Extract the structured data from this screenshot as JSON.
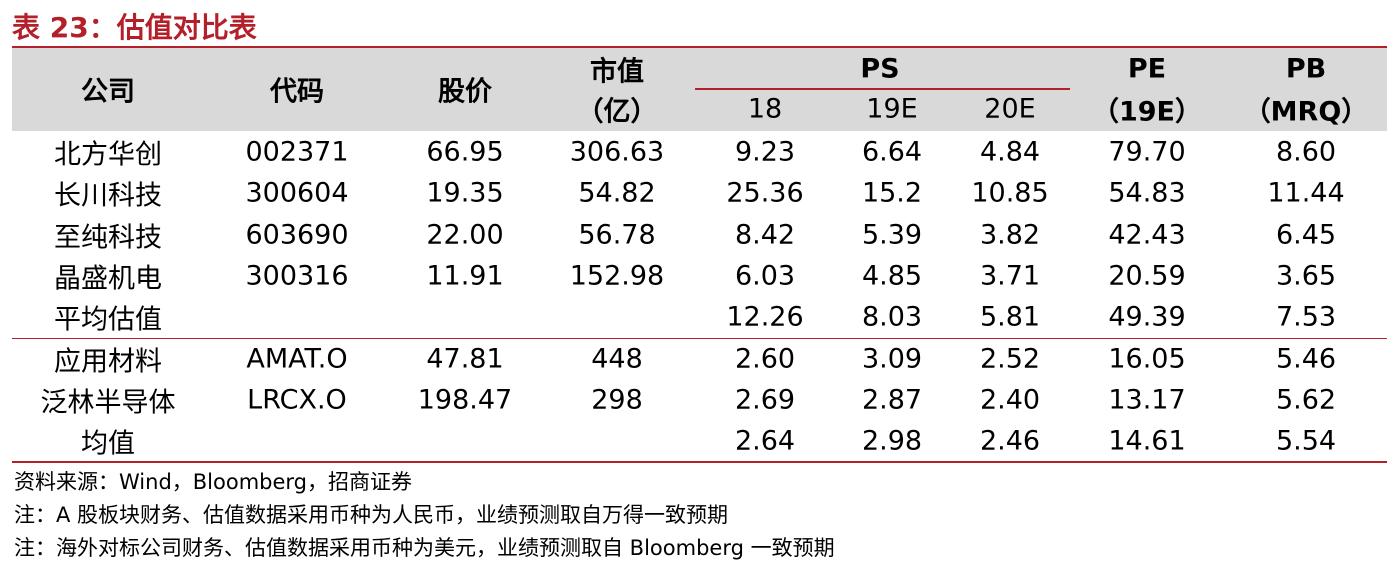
{
  "title": "表 23：估值对比表",
  "header": {
    "columns": [
      "公司",
      "代码",
      "股价"
    ],
    "market_cap": [
      "市值",
      "（亿）"
    ],
    "ps": {
      "title": "PS",
      "sub": [
        "18",
        "19E",
        "20E"
      ]
    },
    "pe": [
      "PE",
      "（19E）"
    ],
    "pb": [
      "PB",
      "（MRQ）"
    ]
  },
  "rows": [
    [
      "北方华创",
      "002371",
      "66.95",
      "306.63",
      "9.23",
      "6.64",
      "4.84",
      "79.70",
      "8.60"
    ],
    [
      "长川科技",
      "300604",
      "19.35",
      "54.82",
      "25.36",
      "15.2",
      "10.85",
      "54.83",
      "11.44"
    ],
    [
      "至纯科技",
      "603690",
      "22.00",
      "56.78",
      "8.42",
      "5.39",
      "3.82",
      "42.43",
      "6.45"
    ],
    [
      "晶盛机电",
      "300316",
      "11.91",
      "152.98",
      "6.03",
      "4.85",
      "3.71",
      "20.59",
      "3.65"
    ],
    [
      "平均估值",
      null,
      null,
      null,
      "12.26",
      "8.03",
      "5.81",
      "49.39",
      "7.53"
    ],
    [
      "应用材料",
      "AMAT.O",
      "47.81",
      "448",
      "2.60",
      "3.09",
      "2.52",
      "16.05",
      "5.46"
    ],
    [
      "泛林半导体",
      "LRCX.O",
      "198.47",
      "298",
      "2.69",
      "2.87",
      "2.40",
      "13.17",
      "5.62"
    ],
    [
      "均值",
      null,
      null,
      null,
      "2.64",
      "2.98",
      "2.46",
      "14.61",
      "5.54"
    ]
  ],
  "notes": [
    "资料来源：Wind，Bloomberg，招商证券",
    "注：A 股板块财务、估值数据采用币种为人民币，业绩预测取自万得一致预期",
    "注：海外对标公司财务、估值数据采用币种为美元，业绩预测取自 Bloomberg 一致预期"
  ]
}
